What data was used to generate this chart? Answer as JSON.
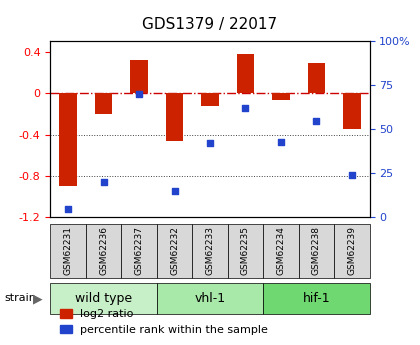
{
  "title": "GDS1379 / 22017",
  "samples": [
    "GSM62231",
    "GSM62236",
    "GSM62237",
    "GSM62232",
    "GSM62233",
    "GSM62235",
    "GSM62234",
    "GSM62238",
    "GSM62239"
  ],
  "log2_ratio": [
    -0.9,
    -0.2,
    0.32,
    -0.46,
    -0.12,
    0.38,
    -0.07,
    0.29,
    -0.35
  ],
  "pct_rank": [
    5,
    20,
    70,
    15,
    42,
    62,
    43,
    55,
    24
  ],
  "groups": [
    {
      "label": "wild type",
      "start": 0,
      "end": 3,
      "color": "#c8f0c8"
    },
    {
      "label": "vhl-1",
      "start": 3,
      "end": 6,
      "color": "#a8e8a8"
    },
    {
      "label": "hif-1",
      "start": 6,
      "end": 9,
      "color": "#70d870"
    }
  ],
  "ylim_left": [
    -1.2,
    0.5
  ],
  "ylim_right": [
    0,
    100
  ],
  "bar_color": "#cc2200",
  "dot_color": "#2244cc",
  "zero_line_color": "#cc0000",
  "grid_color": "#404040",
  "bg_color": "#ffffff",
  "plot_bg": "#ffffff",
  "title_fontsize": 11,
  "tick_fontsize": 8,
  "legend_fontsize": 8,
  "group_label_fontsize": 9,
  "strain_label": "strain"
}
